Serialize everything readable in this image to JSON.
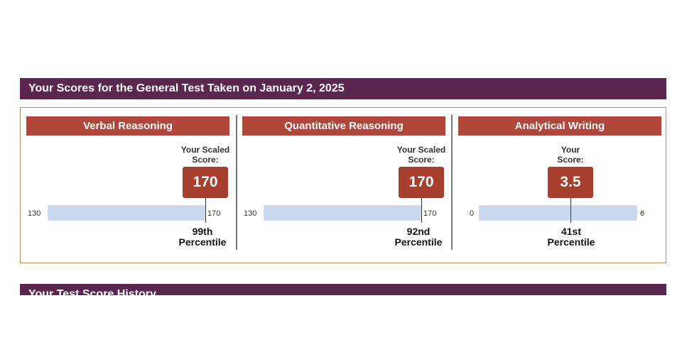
{
  "header": {
    "title": "Your Scores for the General Test Taken on January 2, 2025"
  },
  "history": {
    "title": "Your Test Score History"
  },
  "sections": [
    {
      "name": "Verbal Reasoning",
      "score_label_line1": "Your Scaled",
      "score_label_line2": "Score:",
      "score": "170",
      "min": "130",
      "max": "170",
      "fill_fraction": 1.0,
      "percentile_line1": "99th",
      "percentile_line2": "Percentile"
    },
    {
      "name": "Quantitative Reasoning",
      "score_label_line1": "Your Scaled",
      "score_label_line2": "Score:",
      "score": "170",
      "min": "130",
      "max": "170",
      "fill_fraction": 1.0,
      "percentile_line1": "92nd",
      "percentile_line2": "Percentile"
    },
    {
      "name": "Analytical Writing",
      "score_label_line1": "Your",
      "score_label_line2": "Score:",
      "score": "3.5",
      "min": "0",
      "max": "6",
      "fill_fraction": 0.583,
      "percentile_line1": "41st",
      "percentile_line2": "Percentile"
    }
  ],
  "colors": {
    "banner": "#5b2650",
    "section_header": "#b0473a",
    "score_box": "#a63f2e",
    "bar": "#c9d8ec",
    "box_border": "#b58f5a"
  }
}
